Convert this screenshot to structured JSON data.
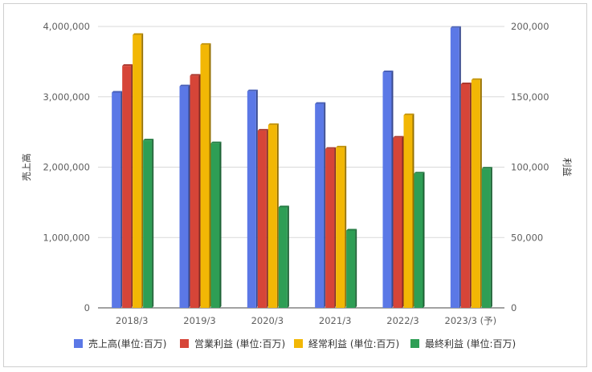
{
  "chart_data": {
    "type": "bar",
    "categories": [
      "2018/3",
      "2019/3",
      "2020/3",
      "2021/3",
      "2022/3",
      "2023/3 (予)"
    ],
    "series": [
      {
        "name": "売上高(単位:百万)",
        "axis": "left",
        "color": "#5b78e6",
        "values": [
          3060000,
          3150000,
          3080000,
          2900000,
          3350000,
          3980000
        ]
      },
      {
        "name": "営業利益 (単位:百万)",
        "axis": "right",
        "color": "#d64538",
        "values": [
          172000,
          165000,
          126000,
          113000,
          121000,
          159000
        ]
      },
      {
        "name": "経常利益 (単位:百万)",
        "axis": "right",
        "color": "#f2b705",
        "values": [
          194000,
          187000,
          130000,
          114000,
          137000,
          162000
        ]
      },
      {
        "name": "最終利益 (単位:百万)",
        "axis": "right",
        "color": "#2e9e55",
        "values": [
          119000,
          117000,
          71500,
          55000,
          95500,
          99000
        ]
      }
    ],
    "ylabel": "売上高",
    "y2label": "利益",
    "ylim": [
      0,
      4000000
    ],
    "y2lim": [
      0,
      200000
    ],
    "yticks": [
      "0",
      "1,000,000",
      "2,000,000",
      "3,000,000",
      "4,000,000"
    ],
    "y2ticks": [
      "0",
      "50,000",
      "100,000",
      "150,000",
      "200,000"
    ],
    "grid": true,
    "legend": "bottom"
  }
}
